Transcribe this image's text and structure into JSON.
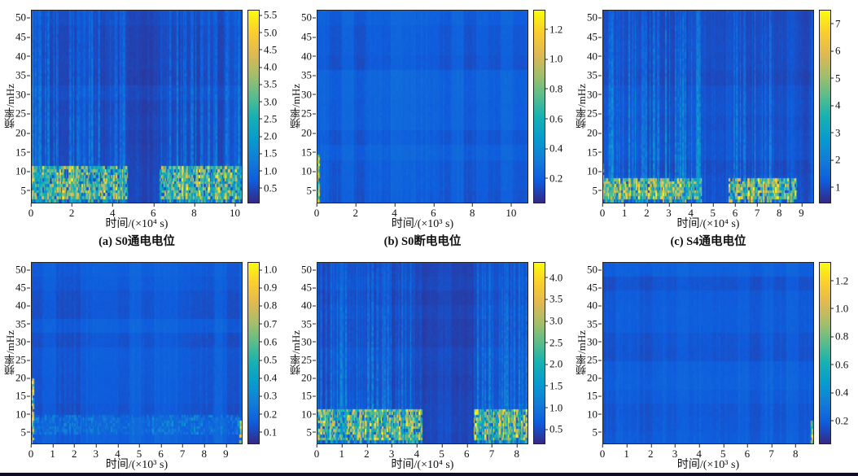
{
  "figure": {
    "background": "#ffffff",
    "axis_color": "#222222",
    "bottom_bar_color": "#0d0d26",
    "colormap": [
      "#352a87",
      "#0f5cdd",
      "#127dd8",
      "#079ccf",
      "#15b1b4",
      "#59bd8c",
      "#a5be6b",
      "#e1b952",
      "#fcce2e",
      "#f9fb0e"
    ]
  },
  "chart_data": [
    {
      "id": "a",
      "type": "heatmap",
      "caption": "(a) S0通电电位",
      "xlabel": "时间/(×10⁴ s)",
      "ylabel": "频率/mHz",
      "x_ticks": [
        0,
        2,
        4,
        6,
        8,
        10
      ],
      "xlim": [
        0,
        10.3
      ],
      "y_ticks": [
        5,
        10,
        15,
        20,
        25,
        30,
        35,
        40,
        45,
        50
      ],
      "ylim": [
        2,
        52
      ],
      "colorbar": {
        "ticks": [
          0.5,
          1,
          1.5,
          2,
          2.5,
          3,
          3.5,
          4,
          4.5,
          5,
          5.5
        ],
        "range": [
          0.1,
          5.65
        ],
        "decimals": 1
      },
      "pattern": {
        "seed": 101,
        "base": 0.07,
        "row_noise": 0.012,
        "col_block": 0.015,
        "streaks": {
          "density": 0.5,
          "strength": 0.32
        },
        "gaps": [
          [
            4.75,
            6.3,
            0.15
          ]
        ],
        "band": {
          "y0": 3,
          "y1": 11,
          "min": 0.42,
          "max": 1.0,
          "density": 0.85
        },
        "band2": {
          "y0": 1,
          "y1": 3,
          "min": 0.15,
          "max": 0.65,
          "density": 0.6
        }
      }
    },
    {
      "id": "b",
      "type": "heatmap",
      "caption": "(b) S0断电电位",
      "xlabel": "时间/(×10³ s)",
      "ylabel": "频率/mHz",
      "x_ticks": [
        0,
        2,
        4,
        6,
        8,
        10
      ],
      "xlim": [
        0,
        10.8
      ],
      "y_ticks": [
        5,
        10,
        15,
        20,
        25,
        30,
        35,
        40,
        45,
        50
      ],
      "ylim": [
        2,
        52
      ],
      "colorbar": {
        "ticks": [
          0.2,
          0.4,
          0.6,
          0.8,
          1,
          1.2
        ],
        "range": [
          0.04,
          1.33
        ],
        "decimals": 1
      },
      "pattern": {
        "seed": 202,
        "base": 0.115,
        "row_noise": 0.02,
        "col_block": 0.03,
        "streaks": {
          "density": 0.35,
          "strength": 0.06
        },
        "left_edge": {
          "y0": 2,
          "y1": 15,
          "max": 1.0,
          "cols": 2
        }
      }
    },
    {
      "id": "c",
      "type": "heatmap",
      "caption": "(c) S4通电电位",
      "xlabel": "时间/(×10⁴ s)",
      "ylabel": "频率/mHz",
      "x_ticks": [
        0,
        1,
        2,
        3,
        4,
        5,
        6,
        7,
        8,
        9
      ],
      "xlim": [
        0,
        9.5
      ],
      "y_ticks": [
        5,
        10,
        15,
        20,
        25,
        30,
        35,
        40,
        45,
        50
      ],
      "ylim": [
        2,
        52
      ],
      "colorbar": {
        "ticks": [
          1,
          2,
          3,
          4,
          5,
          6,
          7
        ],
        "range": [
          0.45,
          7.5
        ],
        "decimals": 0
      },
      "pattern": {
        "seed": 303,
        "base": 0.07,
        "row_noise": 0.012,
        "col_block": 0.015,
        "streaks": {
          "density": 0.6,
          "strength": 0.4,
          "regions": [
            [
              0.2,
              4.5
            ],
            [
              5.9,
              7.7
            ]
          ],
          "outside": 0.2
        },
        "band": {
          "y0": 3,
          "y1": 8,
          "min": 0.45,
          "max": 1.0,
          "density": 0.85,
          "xranges": [
            [
              0,
              4.5
            ],
            [
              5.7,
              8.8
            ]
          ]
        },
        "band2": {
          "y0": 1,
          "y1": 3,
          "min": 0.2,
          "max": 0.8,
          "density": 0.5,
          "xranges": [
            [
              0,
              4.5
            ],
            [
              5.7,
              8.8
            ]
          ]
        },
        "left_edge": {
          "y0": 3,
          "y1": 12,
          "max": 1.0,
          "cols": 1
        }
      }
    },
    {
      "id": "d",
      "type": "heatmap",
      "xlabel": "时间/(×10³ s)",
      "ylabel": "频率/mHz",
      "x_ticks": [
        0,
        1,
        2,
        3,
        4,
        5,
        6,
        7,
        8,
        9
      ],
      "xlim": [
        0,
        9.7
      ],
      "y_ticks": [
        5,
        10,
        15,
        20,
        25,
        30,
        35,
        40,
        45,
        50
      ],
      "ylim": [
        2,
        52
      ],
      "colorbar": {
        "ticks": [
          0.1,
          0.2,
          0.3,
          0.4,
          0.5,
          0.6,
          0.7,
          0.8,
          0.9,
          1
        ],
        "range": [
          0.04,
          1.04
        ],
        "decimals": 1
      },
      "pattern": {
        "seed": 404,
        "base": 0.11,
        "row_noise": 0.02,
        "col_block": 0.025,
        "streaks": {
          "density": 0.35,
          "strength": 0.06
        },
        "gaps": [
          [
            3.3,
            6.0,
            0.8
          ]
        ],
        "band": {
          "y0": 4,
          "y1": 10,
          "min": 0.12,
          "max": 0.3,
          "density": 0.8
        },
        "left_edge": {
          "y0": 2,
          "y1": 20,
          "max": 1.0,
          "cols": 2
        },
        "right_edge": {
          "y0": 2,
          "y1": 8,
          "max": 0.95,
          "cols": 2
        }
      }
    },
    {
      "id": "e",
      "type": "heatmap",
      "xlabel": "时间/(×10⁴ s)",
      "ylabel": "频率/mHz",
      "x_ticks": [
        0,
        1,
        2,
        3,
        4,
        5,
        6,
        7,
        8
      ],
      "xlim": [
        0,
        8.4
      ],
      "y_ticks": [
        5,
        10,
        15,
        20,
        25,
        30,
        35,
        40,
        45,
        50
      ],
      "ylim": [
        2,
        52
      ],
      "colorbar": {
        "ticks": [
          0.5,
          1,
          1.5,
          2,
          2.5,
          3,
          3.5,
          4
        ],
        "range": [
          0.18,
          4.35
        ],
        "decimals": 1
      },
      "pattern": {
        "seed": 505,
        "base": 0.07,
        "row_noise": 0.012,
        "col_block": 0.015,
        "streaks": {
          "density": 0.5,
          "strength": 0.3
        },
        "gaps": [
          [
            4.2,
            6.25,
            0.15
          ]
        ],
        "band": {
          "y0": 3,
          "y1": 11,
          "min": 0.42,
          "max": 1.0,
          "density": 0.85
        },
        "band2": {
          "y0": 1,
          "y1": 3,
          "min": 0.15,
          "max": 0.6,
          "density": 0.55
        }
      }
    },
    {
      "id": "f",
      "type": "heatmap",
      "xlabel": "时间/(×10³ s)",
      "ylabel": "频率/mHz",
      "x_ticks": [
        0,
        1,
        2,
        3,
        4,
        5,
        6,
        7,
        8
      ],
      "xlim": [
        0,
        8.7
      ],
      "y_ticks": [
        5,
        10,
        15,
        20,
        25,
        30,
        35,
        40,
        45,
        50
      ],
      "ylim": [
        2,
        52
      ],
      "colorbar": {
        "ticks": [
          0.2,
          0.4,
          0.6,
          0.8,
          1,
          1.2
        ],
        "range": [
          0.04,
          1.33
        ],
        "decimals": 1
      },
      "pattern": {
        "seed": 606,
        "base": 0.11,
        "row_noise": 0.018,
        "col_block": 0.02,
        "streaks": {
          "density": 0.3,
          "strength": 0.05
        },
        "right_edge": {
          "y0": 2,
          "y1": 8,
          "max": 0.95,
          "cols": 2
        }
      }
    }
  ]
}
